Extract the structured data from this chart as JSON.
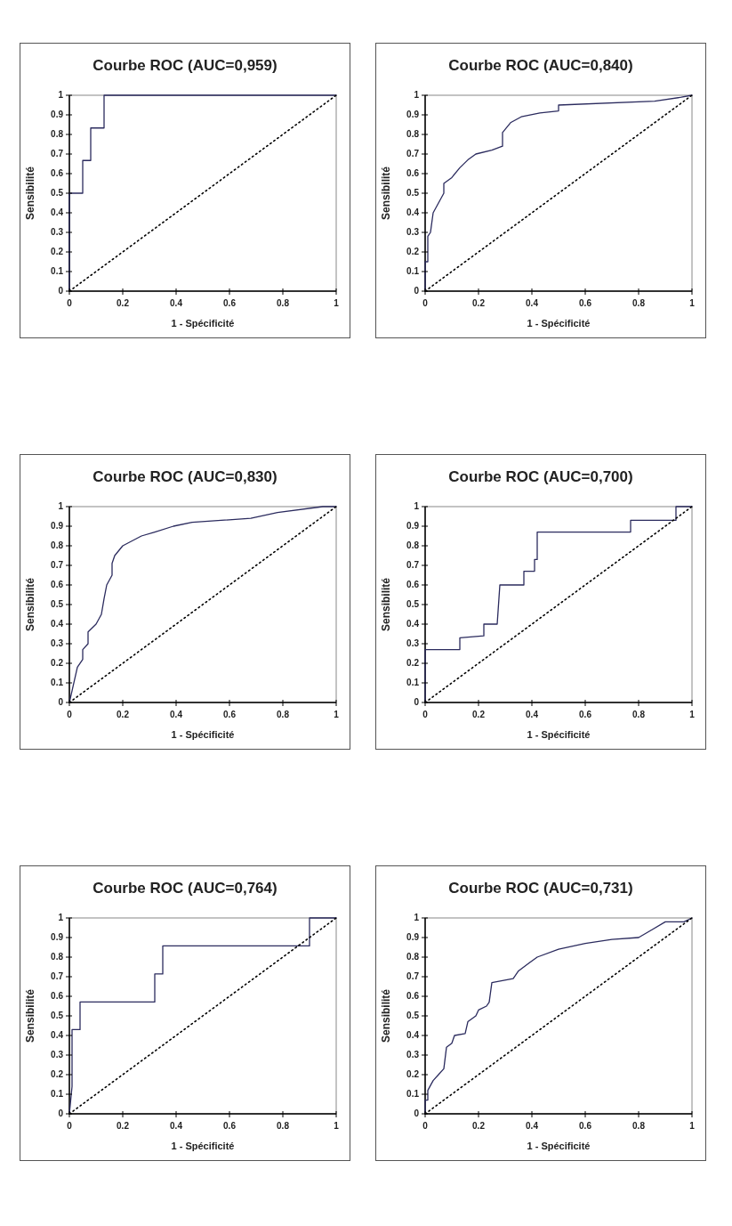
{
  "chart_data": [
    {
      "type": "line",
      "title": "Courbe ROC (AUC=0,959)",
      "xlabel": "1 - Spécificité",
      "ylabel": "Sensibilité",
      "xlim": [
        0,
        1
      ],
      "ylim": [
        0,
        1
      ],
      "xticks": [
        0,
        0.2,
        0.4,
        0.6,
        0.8,
        1
      ],
      "yticks": [
        0,
        0.1,
        0.2,
        0.3,
        0.4,
        0.5,
        0.6,
        0.7,
        0.8,
        0.9,
        1
      ],
      "grid": false,
      "series": [
        {
          "color": "#2b2b5e",
          "line_style": "solid",
          "x": [
            0,
            0,
            0.05,
            0.05,
            0.08,
            0.08,
            0.13,
            0.13,
            1
          ],
          "values": [
            0,
            0.5,
            0.5,
            0.667,
            0.667,
            0.833,
            0.833,
            1,
            1
          ]
        },
        {
          "color": "#000000",
          "line_style": "dotted",
          "x": [
            0,
            1
          ],
          "values": [
            0,
            1
          ]
        }
      ]
    },
    {
      "type": "line",
      "title": "Courbe ROC (AUC=0,840)",
      "xlabel": "1 - Spécificité",
      "ylabel": "Sensibilité",
      "xlim": [
        0,
        1
      ],
      "ylim": [
        0,
        1
      ],
      "xticks": [
        0,
        0.2,
        0.4,
        0.6,
        0.8,
        1
      ],
      "yticks": [
        0,
        0.1,
        0.2,
        0.3,
        0.4,
        0.5,
        0.6,
        0.7,
        0.8,
        0.9,
        1
      ],
      "grid": false,
      "series": [
        {
          "color": "#2b2b5e",
          "line_style": "solid",
          "x": [
            0,
            0,
            0.01,
            0.01,
            0.02,
            0.03,
            0.05,
            0.07,
            0.07,
            0.1,
            0.13,
            0.16,
            0.19,
            0.25,
            0.29,
            0.29,
            0.32,
            0.36,
            0.43,
            0.5,
            0.5,
            0.86,
            0.96,
            1
          ],
          "values": [
            0,
            0.15,
            0.15,
            0.28,
            0.3,
            0.4,
            0.45,
            0.5,
            0.55,
            0.58,
            0.63,
            0.67,
            0.7,
            0.72,
            0.74,
            0.81,
            0.86,
            0.89,
            0.91,
            0.92,
            0.95,
            0.97,
            0.99,
            1
          ]
        },
        {
          "color": "#000000",
          "line_style": "dotted",
          "x": [
            0,
            1
          ],
          "values": [
            0,
            1
          ]
        }
      ]
    },
    {
      "type": "line",
      "title": "Courbe ROC (AUC=0,830)",
      "xlabel": "1 - Spécificité",
      "ylabel": "Sensibilité",
      "xlim": [
        0,
        1
      ],
      "ylim": [
        0,
        1
      ],
      "xticks": [
        0,
        0.2,
        0.4,
        0.6,
        0.8,
        1
      ],
      "yticks": [
        0,
        0.1,
        0.2,
        0.3,
        0.4,
        0.5,
        0.6,
        0.7,
        0.8,
        0.9,
        1
      ],
      "grid": false,
      "series": [
        {
          "color": "#2b2b5e",
          "line_style": "solid",
          "x": [
            0,
            0.01,
            0.02,
            0.03,
            0.05,
            0.05,
            0.07,
            0.07,
            0.1,
            0.12,
            0.13,
            0.14,
            0.16,
            0.16,
            0.17,
            0.2,
            0.27,
            0.32,
            0.39,
            0.46,
            0.68,
            0.78,
            0.95,
            1
          ],
          "values": [
            0,
            0.06,
            0.12,
            0.18,
            0.22,
            0.27,
            0.3,
            0.36,
            0.4,
            0.45,
            0.53,
            0.6,
            0.65,
            0.71,
            0.75,
            0.8,
            0.85,
            0.87,
            0.9,
            0.92,
            0.94,
            0.97,
            1,
            1
          ]
        },
        {
          "color": "#000000",
          "line_style": "dotted",
          "x": [
            0,
            1
          ],
          "values": [
            0,
            1
          ]
        }
      ]
    },
    {
      "type": "line",
      "title": "Courbe ROC (AUC=0,700)",
      "xlabel": "1 - Spécificité",
      "ylabel": "Sensibilité",
      "xlim": [
        0,
        1
      ],
      "ylim": [
        0,
        1
      ],
      "xticks": [
        0,
        0.2,
        0.4,
        0.6,
        0.8,
        1
      ],
      "yticks": [
        0,
        0.1,
        0.2,
        0.3,
        0.4,
        0.5,
        0.6,
        0.7,
        0.8,
        0.9,
        1
      ],
      "grid": false,
      "series": [
        {
          "color": "#2b2b5e",
          "line_style": "solid",
          "x": [
            0,
            0,
            0.13,
            0.13,
            0.22,
            0.22,
            0.27,
            0.28,
            0.37,
            0.37,
            0.41,
            0.41,
            0.42,
            0.42,
            0.77,
            0.77,
            0.94,
            0.94,
            1
          ],
          "values": [
            0,
            0.27,
            0.27,
            0.33,
            0.34,
            0.4,
            0.4,
            0.6,
            0.6,
            0.67,
            0.67,
            0.73,
            0.73,
            0.87,
            0.87,
            0.93,
            0.93,
            1,
            1
          ]
        },
        {
          "color": "#000000",
          "line_style": "dotted",
          "x": [
            0,
            1
          ],
          "values": [
            0,
            1
          ]
        }
      ]
    },
    {
      "type": "line",
      "title": "Courbe ROC (AUC=0,764)",
      "xlabel": "1 - Spécificité",
      "ylabel": "Sensibilité",
      "xlim": [
        0,
        1
      ],
      "ylim": [
        0,
        1
      ],
      "xticks": [
        0,
        0.2,
        0.4,
        0.6,
        0.8,
        1
      ],
      "yticks": [
        0,
        0.1,
        0.2,
        0.3,
        0.4,
        0.5,
        0.6,
        0.7,
        0.8,
        0.9,
        1
      ],
      "grid": false,
      "series": [
        {
          "color": "#2b2b5e",
          "line_style": "solid",
          "x": [
            0,
            0.01,
            0.01,
            0.04,
            0.04,
            0.32,
            0.32,
            0.35,
            0.35,
            0.9,
            0.9,
            1
          ],
          "values": [
            0,
            0.14,
            0.43,
            0.43,
            0.571,
            0.571,
            0.714,
            0.714,
            0.857,
            0.857,
            1,
            1
          ]
        },
        {
          "color": "#000000",
          "line_style": "dotted",
          "x": [
            0,
            1
          ],
          "values": [
            0,
            1
          ]
        }
      ]
    },
    {
      "type": "line",
      "title": "Courbe ROC (AUC=0,731)",
      "xlabel": "1 - Spécificité",
      "ylabel": "Sensibilité",
      "xlim": [
        0,
        1
      ],
      "ylim": [
        0,
        1
      ],
      "xticks": [
        0,
        0.2,
        0.4,
        0.6,
        0.8,
        1
      ],
      "yticks": [
        0,
        0.1,
        0.2,
        0.3,
        0.4,
        0.5,
        0.6,
        0.7,
        0.8,
        0.9,
        1
      ],
      "grid": false,
      "series": [
        {
          "color": "#2b2b5e",
          "line_style": "solid",
          "x": [
            0,
            0,
            0.01,
            0.01,
            0.03,
            0.05,
            0.07,
            0.08,
            0.1,
            0.11,
            0.15,
            0.16,
            0.19,
            0.2,
            0.23,
            0.24,
            0.25,
            0.33,
            0.35,
            0.39,
            0.42,
            0.5,
            0.6,
            0.7,
            0.8,
            0.85,
            0.9,
            0.97,
            1
          ],
          "values": [
            0,
            0.07,
            0.07,
            0.12,
            0.17,
            0.2,
            0.23,
            0.34,
            0.36,
            0.4,
            0.41,
            0.47,
            0.5,
            0.53,
            0.55,
            0.57,
            0.67,
            0.69,
            0.73,
            0.77,
            0.8,
            0.84,
            0.87,
            0.89,
            0.9,
            0.94,
            0.98,
            0.98,
            1
          ]
        },
        {
          "color": "#000000",
          "line_style": "dotted",
          "x": [
            0,
            1
          ],
          "values": [
            0,
            1
          ]
        }
      ]
    }
  ]
}
